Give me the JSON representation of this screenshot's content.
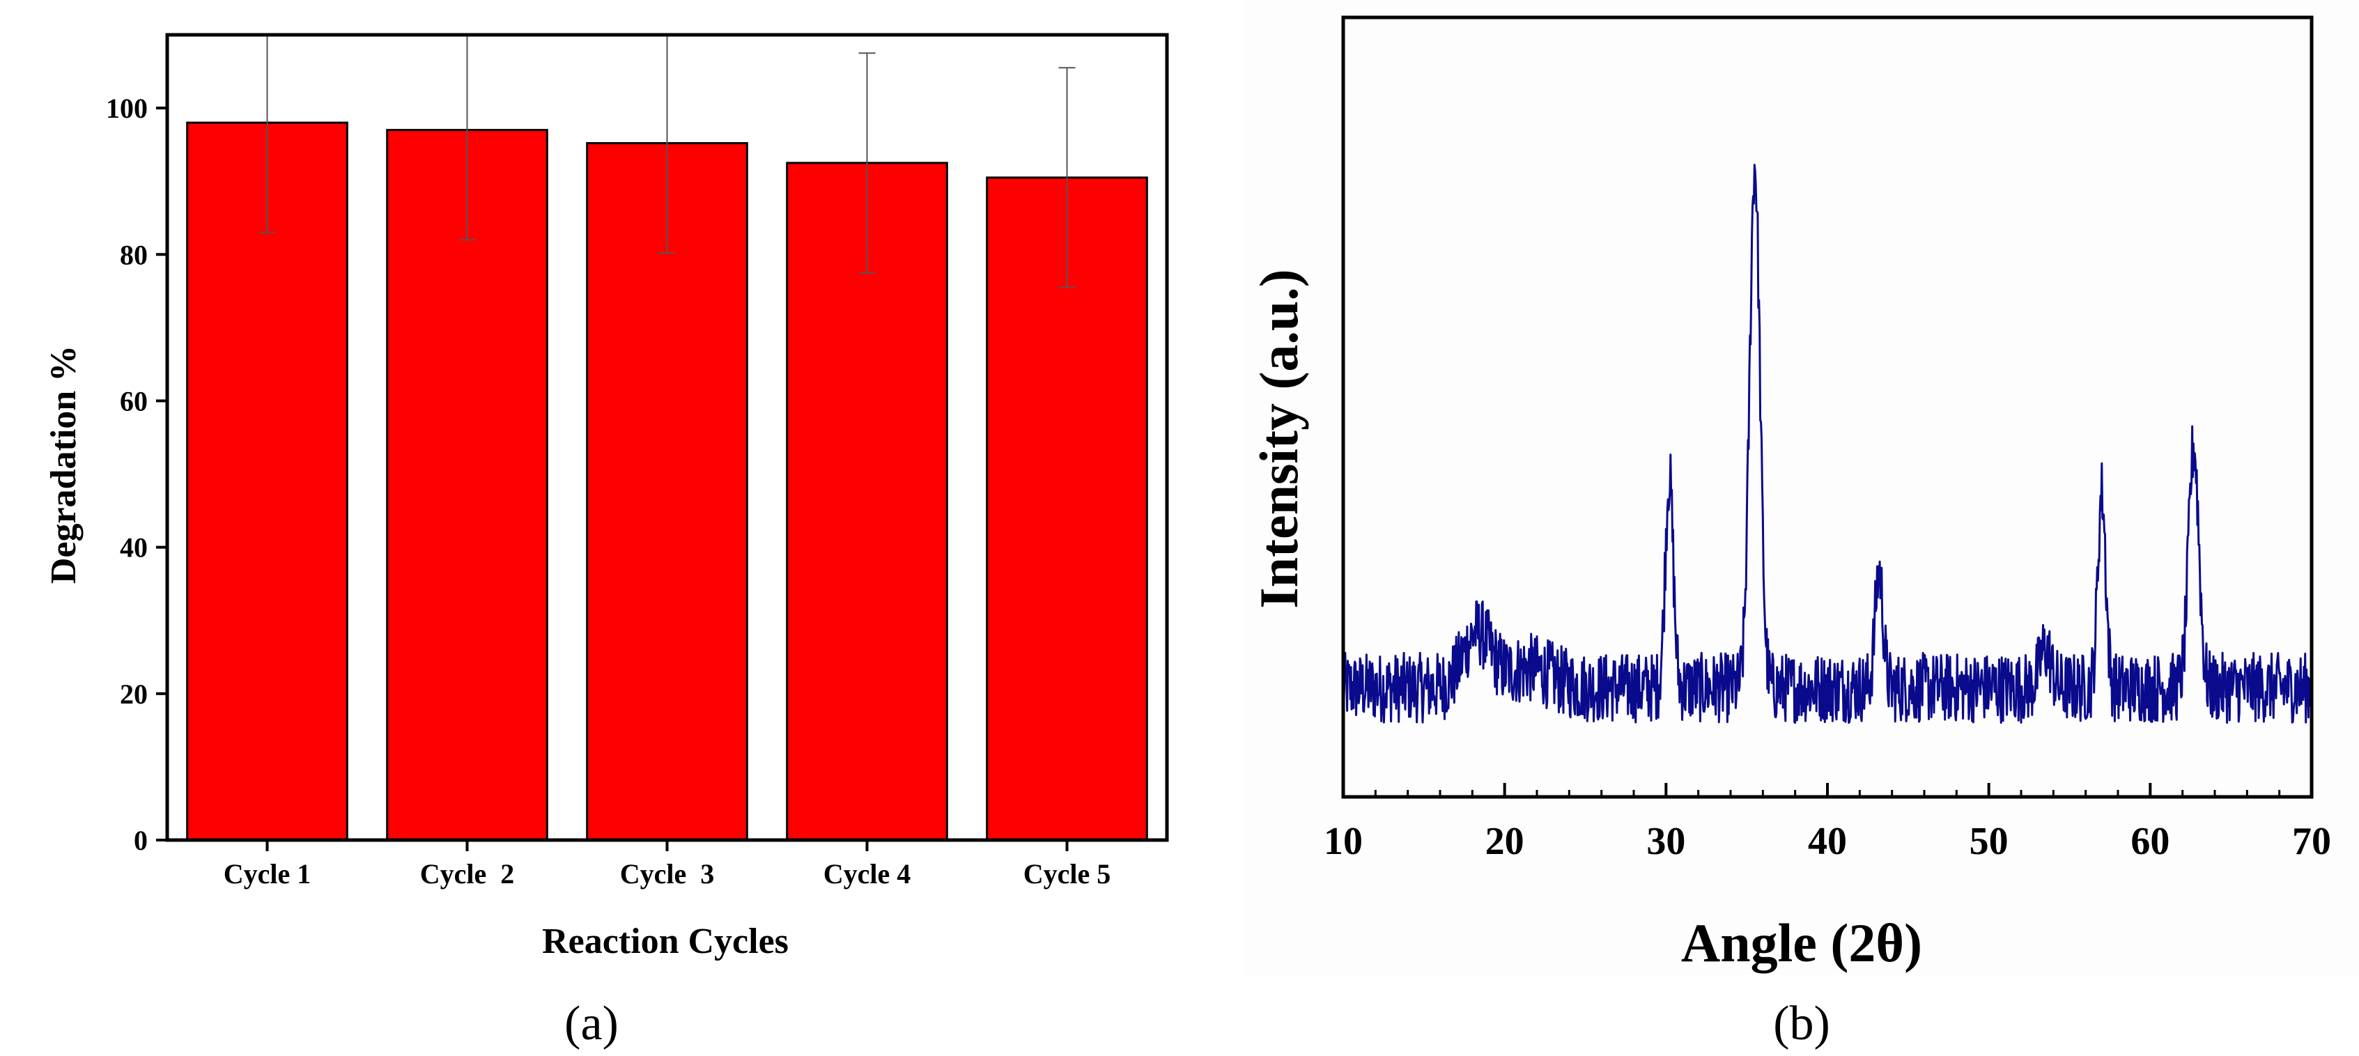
{
  "chart_data": [
    {
      "panel": "a",
      "type": "bar",
      "title": "",
      "panel_label": "(a)",
      "xlabel": "Reaction Cycles",
      "ylabel": "Degradation %",
      "categories": [
        "Cycle 1",
        "Cycle  2",
        "Cycle  3",
        "Cycle 4",
        "Cycle 5"
      ],
      "values": [
        98,
        97,
        95.2,
        92.5,
        90.5
      ],
      "error": [
        15,
        15,
        15,
        15,
        15
      ],
      "ylim": [
        0,
        110
      ],
      "yticks": [
        0,
        20,
        40,
        60,
        80,
        100
      ],
      "bar_color": "#ff0000",
      "grid": false
    },
    {
      "panel": "b",
      "type": "line",
      "title": "",
      "panel_label": "(b)",
      "xlabel": "Angle (2θ)",
      "ylabel": "Intensity (a.u.)",
      "xlim": [
        10,
        70
      ],
      "xticks": [
        10,
        20,
        30,
        40,
        50,
        60,
        70
      ],
      "ylim": [
        0,
        100
      ],
      "yticks": [],
      "line_color": "#0a0a8c",
      "grid": false,
      "baseline_level": 14,
      "peaks": [
        {
          "x": 18.3,
          "height": 7,
          "width": 1.2
        },
        {
          "x": 21.5,
          "height": 2.5,
          "width": 2.0
        },
        {
          "x": 30.2,
          "height": 27,
          "width": 0.35
        },
        {
          "x": 35.5,
          "height": 67,
          "width": 0.45
        },
        {
          "x": 43.2,
          "height": 15,
          "width": 0.35
        },
        {
          "x": 53.5,
          "height": 5,
          "width": 0.5
        },
        {
          "x": 57.0,
          "height": 25,
          "width": 0.35
        },
        {
          "x": 62.7,
          "height": 31,
          "width": 0.45
        }
      ]
    }
  ]
}
